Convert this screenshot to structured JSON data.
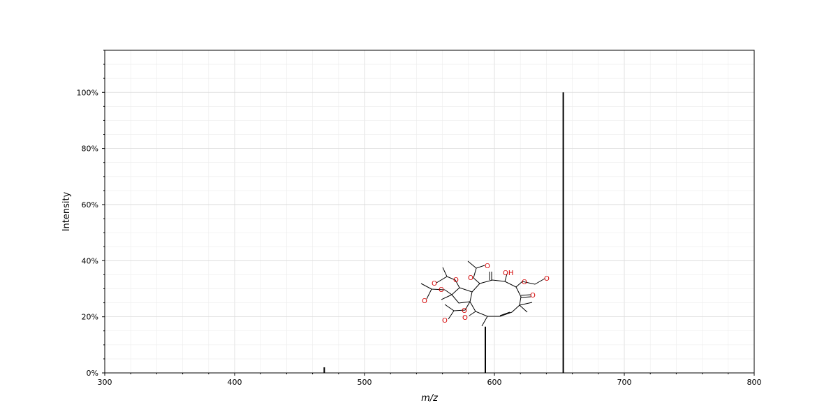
{
  "chart_data": {
    "type": "bar",
    "title": "",
    "xlabel": "m/z",
    "ylabel": "Intensity",
    "xlim": [
      300,
      800
    ],
    "ylim": [
      0,
      115
    ],
    "x_ticks": [
      300,
      400,
      500,
      600,
      700,
      800
    ],
    "y_ticks": [
      0,
      20,
      40,
      60,
      80,
      100
    ],
    "y_tick_format": "percent",
    "grid": true,
    "peaks": [
      {
        "mz": 469,
        "intensity": 2
      },
      {
        "mz": 593,
        "intensity": 16.5
      },
      {
        "mz": 653,
        "intensity": 100
      }
    ],
    "structure_atom_labels": [
      "O",
      "O",
      "O",
      "O",
      "O",
      "O",
      "O",
      "O",
      "O",
      "O",
      "O",
      "O",
      "OH"
    ]
  },
  "colors": {
    "peak": "#000000",
    "heteroatom": "#d40000",
    "grid": "#d9d9d9"
  }
}
